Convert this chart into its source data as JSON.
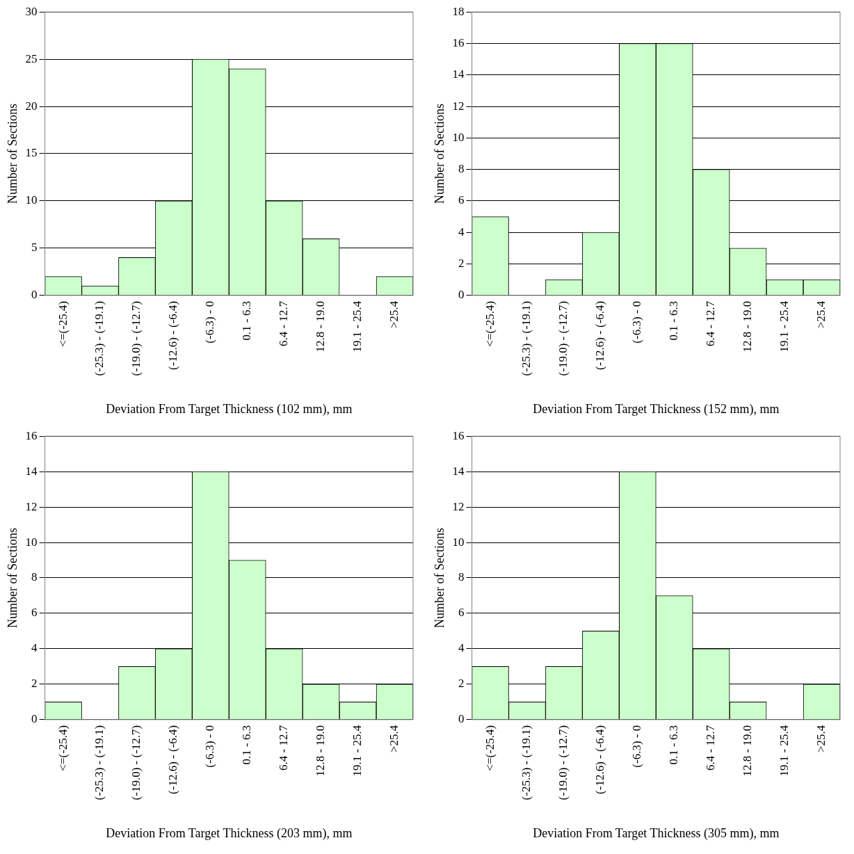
{
  "chart_data": [
    {
      "type": "bar",
      "xlabel": "Deviation From Target Thickness (102 mm), mm",
      "ylabel": "Number of Sections",
      "categories": [
        "<=(-25.4)",
        "(-25.3) - (-19.1)",
        "(-19.0) - (-12.7)",
        "(-12.6) - (-6.4)",
        "(-6.3) - 0",
        "0.1 - 6.3",
        "6.4 - 12.7",
        "12.8 - 19.0",
        "19.1 - 25.4",
        ">25.4"
      ],
      "values": [
        2,
        1,
        4,
        10,
        25,
        24,
        10,
        6,
        0,
        2
      ],
      "color": "#ccffcc",
      "ylim": [
        0,
        30
      ],
      "yticks": [
        0,
        5,
        10,
        15,
        20,
        25,
        30
      ],
      "grid": "y",
      "legend": false
    },
    {
      "type": "bar",
      "xlabel": "Deviation From Target Thickness (152 mm), mm",
      "ylabel": "Number of Sections",
      "categories": [
        "<=(-25.4)",
        "(-25.3) - (-19.1)",
        "(-19.0) - (-12.7)",
        "(-12.6) - (-6.4)",
        "(-6.3) - 0",
        "0.1 - 6.3",
        "6.4 - 12.7",
        "12.8 - 19.0",
        "19.1 - 25.4",
        ">25.4"
      ],
      "values": [
        5,
        0,
        1,
        4,
        16,
        16,
        8,
        3,
        1,
        1
      ],
      "color": "#ccffcc",
      "ylim": [
        0,
        18
      ],
      "yticks": [
        0,
        2,
        4,
        6,
        8,
        10,
        12,
        14,
        16,
        18
      ],
      "grid": "y",
      "legend": false
    },
    {
      "type": "bar",
      "xlabel": "Deviation From Target Thickness (203 mm), mm",
      "ylabel": "Number of Sections",
      "categories": [
        "<=(-25.4)",
        "(-25.3) - (-19.1)",
        "(-19.0) - (-12.7)",
        "(-12.6) - (-6.4)",
        "(-6.3) - 0",
        "0.1 - 6.3",
        "6.4 - 12.7",
        "12.8 - 19.0",
        "19.1 - 25.4",
        ">25.4"
      ],
      "values": [
        1,
        0,
        3,
        4,
        14,
        9,
        4,
        2,
        1,
        2
      ],
      "color": "#ccffcc",
      "ylim": [
        0,
        16
      ],
      "yticks": [
        0,
        2,
        4,
        6,
        8,
        10,
        12,
        14,
        16
      ],
      "grid": "y",
      "legend": false
    },
    {
      "type": "bar",
      "xlabel": "Deviation From Target Thickness (305 mm), mm",
      "ylabel": "Number of Sections",
      "categories": [
        "<=(-25.4)",
        "(-25.3) - (-19.1)",
        "(-19.0) - (-12.7)",
        "(-12.6) - (-6.4)",
        "(-6.3) - 0",
        "0.1 - 6.3",
        "6.4 - 12.7",
        "12.8 - 19.0",
        "19.1 - 25.4",
        ">25.4"
      ],
      "values": [
        3,
        1,
        3,
        5,
        14,
        7,
        4,
        1,
        0,
        2
      ],
      "color": "#ccffcc",
      "ylim": [
        0,
        16
      ],
      "yticks": [
        0,
        2,
        4,
        6,
        8,
        10,
        12,
        14,
        16
      ],
      "grid": "y",
      "legend": false
    }
  ]
}
